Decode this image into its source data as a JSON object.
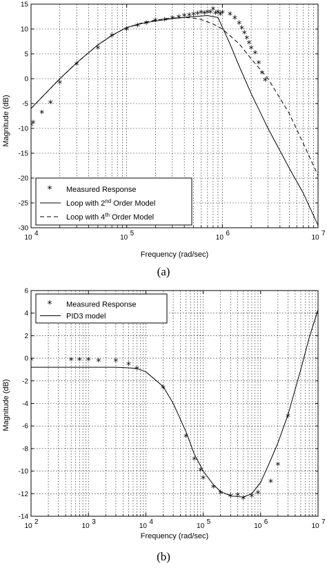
{
  "chart_data": [
    {
      "type": "line",
      "caption": "(a)",
      "xlabel": "Frequency (rad/sec)",
      "ylabel": "Magnitude (dB)",
      "xscale": "log",
      "xlim": [
        10000,
        10000000
      ],
      "ylim": [
        -30,
        15
      ],
      "xtick_exponents": [
        4,
        5,
        6,
        7
      ],
      "yticks": [
        15,
        10,
        5,
        0,
        -5,
        -10,
        -15,
        -20,
        -25,
        -30
      ],
      "grid": true,
      "legend_position": "bottom-left",
      "series": [
        {
          "name": "Measured Response",
          "style": "markers",
          "marker": "*",
          "x": [
            10000,
            10500,
            13000,
            16000,
            20000,
            30000,
            50000,
            70000,
            100000,
            130000,
            160000,
            200000,
            250000,
            300000,
            350000,
            400000,
            450000,
            500000,
            550000,
            600000,
            650000,
            700000,
            750000,
            800000,
            850000,
            900000,
            950000,
            1000000,
            1200000,
            1350000,
            1500000,
            1600000,
            1700000,
            1800000,
            1900000,
            2000000,
            2200000,
            2400000,
            2600000,
            2800000
          ],
          "y": [
            -9.5,
            -9.0,
            -7.0,
            -5.0,
            -1.0,
            2.7,
            6.0,
            8.5,
            9.7,
            10.5,
            11.0,
            11.5,
            11.7,
            12.0,
            12.2,
            12.5,
            12.6,
            12.8,
            12.9,
            13.1,
            13.0,
            13.2,
            13.2,
            13.8,
            13.0,
            13.2,
            12.8,
            13.1,
            12.8,
            12.0,
            11.0,
            10.0,
            9.0,
            8.0,
            7.0,
            6.0,
            5.0,
            3.0,
            1.0,
            -0.5
          ]
        },
        {
          "name": "Loop with 2nd Order Model",
          "name_parts": [
            "Loop with 2",
            "nd",
            " Order Model"
          ],
          "style": "solid",
          "x": [
            10000,
            20000,
            30000,
            50000,
            70000,
            100000,
            150000,
            200000,
            300000,
            500000,
            700000,
            900000,
            1200000,
            1500000,
            2000000,
            3000000,
            5000000,
            7000000,
            10000000
          ],
          "y": [
            -6.0,
            0.0,
            3.2,
            6.8,
            8.7,
            10.3,
            11.2,
            11.6,
            12.1,
            12.5,
            12.7,
            12.3,
            7.0,
            2.5,
            -3.0,
            -10.0,
            -18.0,
            -23.0,
            -29.5
          ]
        },
        {
          "name": "Loop with 4th Order Model",
          "name_parts": [
            "Loop with 4",
            "th",
            " Order Model"
          ],
          "style": "dashed",
          "x": [
            10000,
            20000,
            30000,
            50000,
            70000,
            100000,
            150000,
            200000,
            300000,
            400000,
            500000,
            600000,
            800000,
            1000000,
            1500000,
            2000000,
            3000000,
            5000000,
            7000000,
            10000000
          ],
          "y": [
            -6.0,
            0.0,
            3.2,
            6.8,
            8.7,
            10.3,
            11.3,
            11.8,
            12.2,
            12.3,
            12.2,
            11.9,
            11.0,
            10.0,
            7.0,
            4.0,
            0.0,
            -7.0,
            -13.0,
            -19.5
          ]
        }
      ]
    },
    {
      "type": "line",
      "caption": "(b)",
      "xlabel": "Frequency (rad/sec)",
      "ylabel": "Magnitude (dB)",
      "xscale": "log",
      "xlim": [
        100,
        10000000
      ],
      "ylim": [
        -14,
        6
      ],
      "xtick_exponents": [
        2,
        3,
        4,
        5,
        6,
        7
      ],
      "yticks": [
        6,
        4,
        2,
        0,
        -2,
        -4,
        -6,
        -8,
        -10,
        -12,
        -14
      ],
      "grid": true,
      "legend_position": "top-left",
      "series": [
        {
          "name": "Measured Response",
          "style": "markers",
          "marker": "*",
          "x": [
            100,
            500,
            700,
            1000,
            1500,
            3000,
            5000,
            7000,
            20000,
            50000,
            70000,
            90000,
            100000,
            150000,
            200000,
            300000,
            400000,
            500000,
            700000,
            900000,
            1500000,
            2000000,
            3000000
          ],
          "y": [
            -0.2,
            -0.2,
            -0.2,
            -0.2,
            -0.3,
            -0.3,
            -0.6,
            -1.0,
            -2.7,
            -7.0,
            -9.0,
            -10.0,
            -10.7,
            -11.5,
            -12.0,
            -12.3,
            -12.2,
            -12.5,
            -12.3,
            -12.0,
            -11.0,
            -9.5,
            -5.2
          ]
        },
        {
          "name": "PID3 model",
          "style": "solid",
          "x": [
            100,
            1000,
            3000,
            5000,
            7000,
            10000,
            20000,
            30000,
            50000,
            70000,
            100000,
            150000,
            200000,
            300000,
            500000,
            700000,
            1000000,
            1500000,
            2000000,
            3000000,
            5000000,
            7000000,
            10000000
          ],
          "y": [
            -0.8,
            -0.8,
            -0.8,
            -0.85,
            -0.9,
            -1.2,
            -2.5,
            -4.0,
            -6.5,
            -8.5,
            -10.0,
            -11.2,
            -11.8,
            -12.2,
            -12.3,
            -12.0,
            -11.0,
            -9.0,
            -7.5,
            -5.0,
            -1.0,
            1.8,
            4.3
          ]
        }
      ]
    }
  ]
}
